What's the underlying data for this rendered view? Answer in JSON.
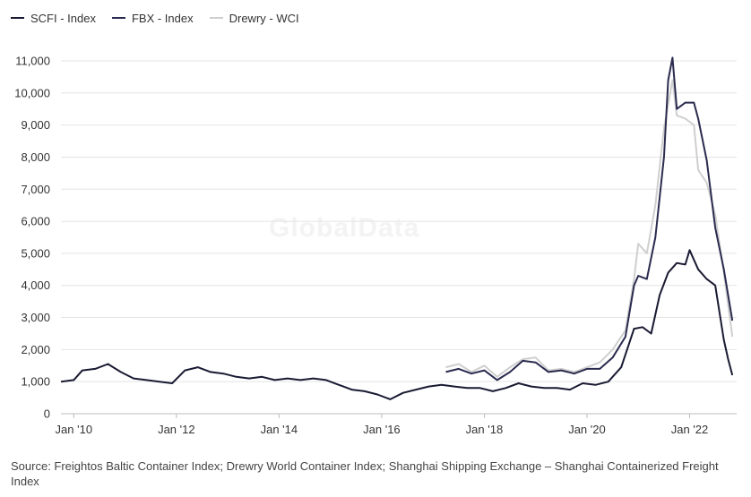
{
  "chart_data": {
    "type": "line",
    "watermark": "GlobalData",
    "source": "Source: Freightos Baltic Container Index; Drewry World Container Index; Shanghai Shipping Exchange – Shanghai Containerized Freight Index",
    "legend_position": "top-left",
    "grid": "horizontal",
    "ylim": [
      0,
      11000
    ],
    "xlim": [
      "2009-10",
      "2022-12"
    ],
    "yticks": [
      0,
      1000,
      2000,
      3000,
      4000,
      5000,
      6000,
      7000,
      8000,
      9000,
      10000,
      11000
    ],
    "ytick_labels": [
      "0",
      "1,000",
      "2,000",
      "3,000",
      "4,000",
      "5,000",
      "6,000",
      "7,000",
      "8,000",
      "9,000",
      "10,000",
      "11,000"
    ],
    "xticks": [
      "2010-01",
      "2012-01",
      "2014-01",
      "2016-01",
      "2018-01",
      "2020-01",
      "2022-01"
    ],
    "xtick_labels": [
      "Jan '10",
      "Jan '12",
      "Jan '14",
      "Jan '16",
      "Jan '18",
      "Jan '20",
      "Jan '22"
    ],
    "series": [
      {
        "name": "Drewry - WCI",
        "color": "#cfcfcf",
        "points": [
          [
            "2017-04",
            1450
          ],
          [
            "2017-07",
            1550
          ],
          [
            "2017-10",
            1300
          ],
          [
            "2018-01",
            1500
          ],
          [
            "2018-04",
            1150
          ],
          [
            "2018-07",
            1450
          ],
          [
            "2018-10",
            1700
          ],
          [
            "2019-01",
            1750
          ],
          [
            "2019-04",
            1350
          ],
          [
            "2019-07",
            1400
          ],
          [
            "2019-10",
            1300
          ],
          [
            "2020-01",
            1450
          ],
          [
            "2020-04",
            1600
          ],
          [
            "2020-07",
            2000
          ],
          [
            "2020-10",
            2600
          ],
          [
            "2020-12",
            4200
          ],
          [
            "2021-01",
            5300
          ],
          [
            "2021-03",
            5000
          ],
          [
            "2021-05",
            6500
          ],
          [
            "2021-07",
            8900
          ],
          [
            "2021-09",
            10400
          ],
          [
            "2021-10",
            9300
          ],
          [
            "2021-12",
            9200
          ],
          [
            "2022-02",
            9000
          ],
          [
            "2022-03",
            7600
          ],
          [
            "2022-05",
            7200
          ],
          [
            "2022-07",
            6200
          ],
          [
            "2022-09",
            4400
          ],
          [
            "2022-11",
            2400
          ]
        ]
      },
      {
        "name": "FBX - Index",
        "color": "#2b2b4f",
        "points": [
          [
            "2017-04",
            1300
          ],
          [
            "2017-07",
            1400
          ],
          [
            "2017-10",
            1250
          ],
          [
            "2018-01",
            1350
          ],
          [
            "2018-04",
            1050
          ],
          [
            "2018-07",
            1300
          ],
          [
            "2018-10",
            1650
          ],
          [
            "2019-01",
            1600
          ],
          [
            "2019-04",
            1300
          ],
          [
            "2019-07",
            1350
          ],
          [
            "2019-10",
            1250
          ],
          [
            "2020-01",
            1400
          ],
          [
            "2020-04",
            1400
          ],
          [
            "2020-07",
            1750
          ],
          [
            "2020-10",
            2400
          ],
          [
            "2020-12",
            4000
          ],
          [
            "2021-01",
            4300
          ],
          [
            "2021-03",
            4200
          ],
          [
            "2021-05",
            5500
          ],
          [
            "2021-07",
            8000
          ],
          [
            "2021-08",
            10400
          ],
          [
            "2021-09",
            11100
          ],
          [
            "2021-10",
            9500
          ],
          [
            "2021-12",
            9700
          ],
          [
            "2022-02",
            9700
          ],
          [
            "2022-03",
            9200
          ],
          [
            "2022-05",
            7900
          ],
          [
            "2022-07",
            5800
          ],
          [
            "2022-09",
            4500
          ],
          [
            "2022-11",
            2900
          ]
        ]
      },
      {
        "name": "SCFI - Index",
        "color": "#1a1a33",
        "points": [
          [
            "2009-10",
            1000
          ],
          [
            "2010-01",
            1050
          ],
          [
            "2010-03",
            1350
          ],
          [
            "2010-06",
            1400
          ],
          [
            "2010-09",
            1550
          ],
          [
            "2010-12",
            1300
          ],
          [
            "2011-03",
            1100
          ],
          [
            "2011-06",
            1050
          ],
          [
            "2011-09",
            1000
          ],
          [
            "2011-12",
            950
          ],
          [
            "2012-03",
            1350
          ],
          [
            "2012-06",
            1450
          ],
          [
            "2012-09",
            1300
          ],
          [
            "2012-12",
            1250
          ],
          [
            "2013-03",
            1150
          ],
          [
            "2013-06",
            1100
          ],
          [
            "2013-09",
            1150
          ],
          [
            "2013-12",
            1050
          ],
          [
            "2014-03",
            1100
          ],
          [
            "2014-06",
            1050
          ],
          [
            "2014-09",
            1100
          ],
          [
            "2014-12",
            1050
          ],
          [
            "2015-03",
            900
          ],
          [
            "2015-06",
            750
          ],
          [
            "2015-09",
            700
          ],
          [
            "2015-12",
            600
          ],
          [
            "2016-03",
            450
          ],
          [
            "2016-06",
            650
          ],
          [
            "2016-09",
            750
          ],
          [
            "2016-12",
            850
          ],
          [
            "2017-03",
            900
          ],
          [
            "2017-06",
            850
          ],
          [
            "2017-09",
            800
          ],
          [
            "2017-12",
            800
          ],
          [
            "2018-03",
            700
          ],
          [
            "2018-06",
            800
          ],
          [
            "2018-09",
            950
          ],
          [
            "2018-12",
            850
          ],
          [
            "2019-03",
            800
          ],
          [
            "2019-06",
            800
          ],
          [
            "2019-09",
            750
          ],
          [
            "2019-12",
            950
          ],
          [
            "2020-03",
            900
          ],
          [
            "2020-06",
            1000
          ],
          [
            "2020-09",
            1450
          ],
          [
            "2020-12",
            2650
          ],
          [
            "2021-02",
            2700
          ],
          [
            "2021-04",
            2500
          ],
          [
            "2021-06",
            3700
          ],
          [
            "2021-08",
            4400
          ],
          [
            "2021-10",
            4700
          ],
          [
            "2021-12",
            4650
          ],
          [
            "2022-01",
            5100
          ],
          [
            "2022-03",
            4500
          ],
          [
            "2022-05",
            4200
          ],
          [
            "2022-07",
            4000
          ],
          [
            "2022-09",
            2300
          ],
          [
            "2022-10",
            1700
          ],
          [
            "2022-11",
            1200
          ]
        ]
      }
    ]
  },
  "legend": [
    {
      "label": "SCFI - Index",
      "color": "#1a1a33"
    },
    {
      "label": "FBX - Index",
      "color": "#2b2b4f"
    },
    {
      "label": "Drewry - WCI",
      "color": "#cfcfcf"
    }
  ]
}
